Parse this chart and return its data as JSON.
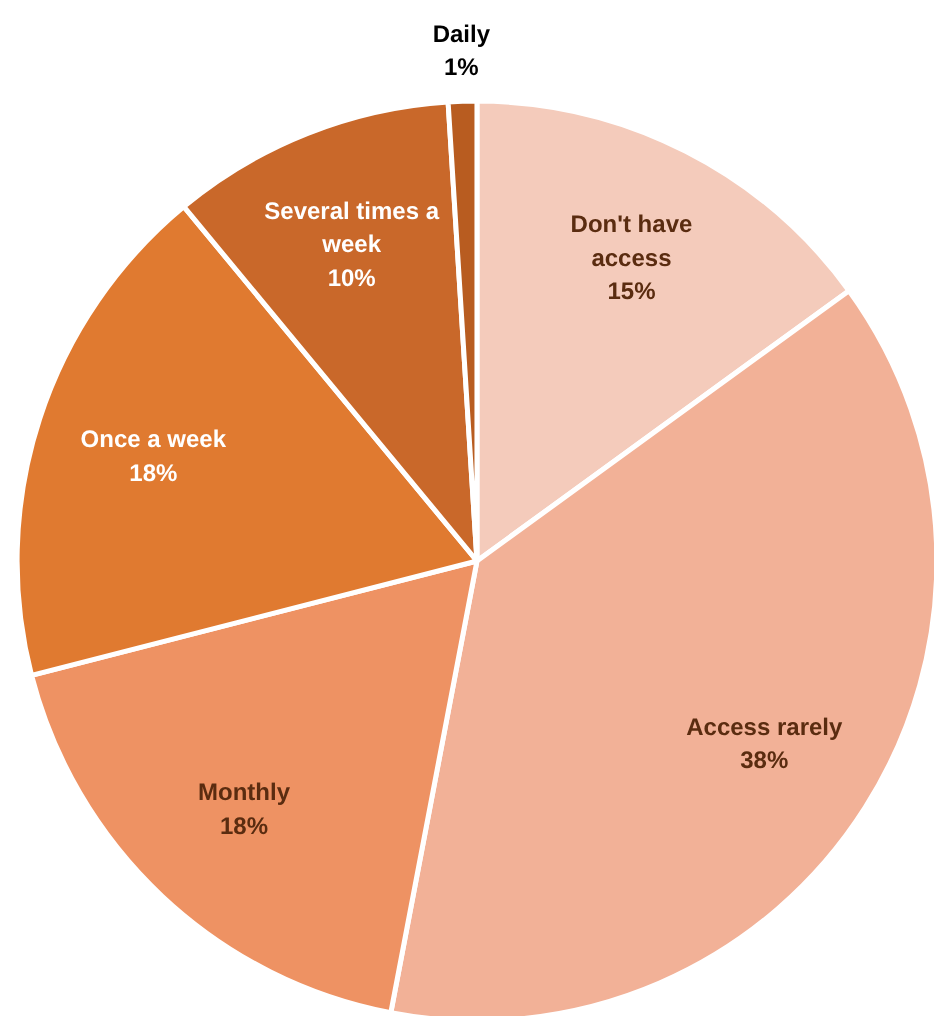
{
  "chart_data": {
    "type": "pie",
    "categories": [
      "Don't have access",
      "Access rarely",
      "Monthly",
      "Once a week",
      "Several times a week",
      "Daily"
    ],
    "values": [
      15,
      38,
      18,
      18,
      10,
      1
    ],
    "colors": [
      "#f4cbbb",
      "#f2b197",
      "#ee9263",
      "#e07a30",
      "#c9682a",
      "#b85c20"
    ],
    "value_labels": [
      "15%",
      "38%",
      "18%",
      "18%",
      "10%",
      "1%"
    ]
  }
}
